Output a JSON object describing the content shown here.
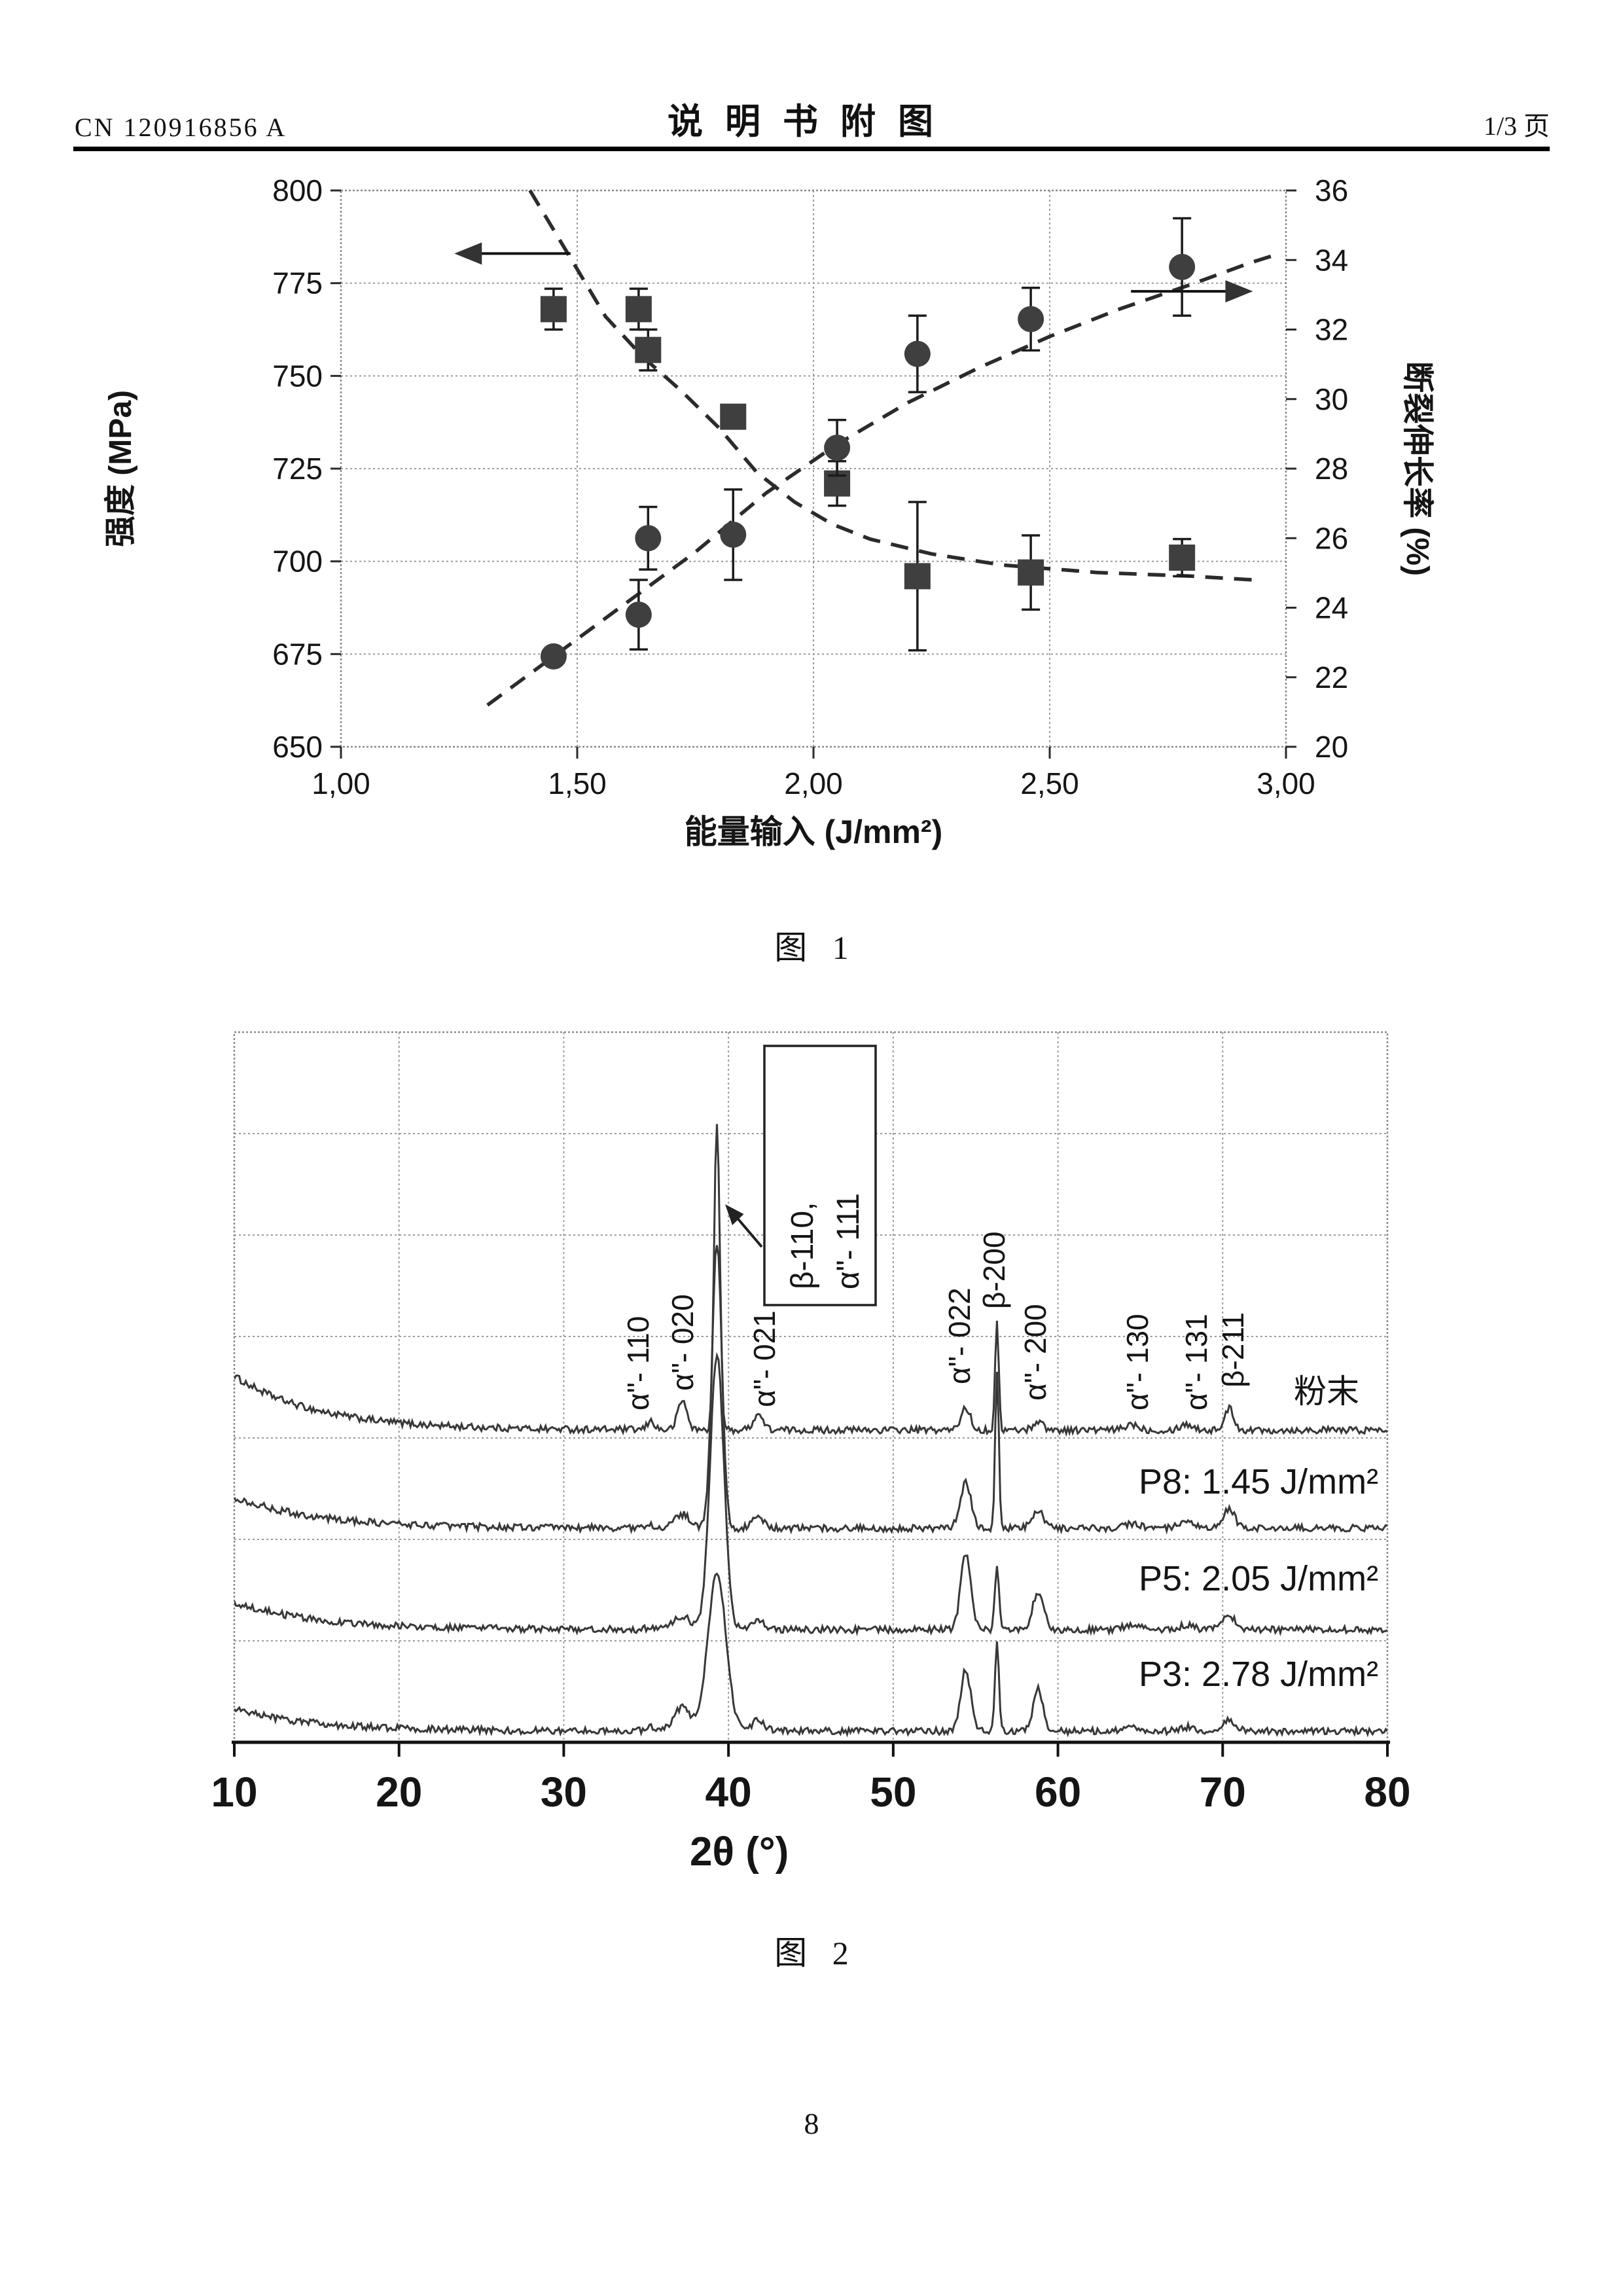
{
  "page": {
    "header_left": "CN 120916856 A",
    "header_center": "说明书附图",
    "header_right": "1/3 页",
    "fig1_caption": "图 1",
    "fig2_caption": "图 2",
    "footer_page_number": "8"
  },
  "chart_data": [
    {
      "id": "fig1",
      "type": "scatter",
      "title": "图 1",
      "xlabel": "能量输入 (J/mm²)",
      "ylabel_left": "强度 (MPa)",
      "ylabel_right": "断裂伸长率 (%)",
      "xlim": [
        1.0,
        3.0
      ],
      "ylim_left": [
        650,
        800
      ],
      "ylim_right": [
        20,
        36
      ],
      "x_tick_values": [
        1.0,
        1.5,
        2.0,
        2.5,
        3.0
      ],
      "x_tick_labels": [
        "1,00",
        "1,50",
        "2,00",
        "2,50",
        "3,00"
      ],
      "y_ticks_left": [
        800,
        775,
        750,
        725,
        700,
        675,
        650
      ],
      "y_ticks_right": [
        36,
        34,
        32,
        30,
        28,
        26,
        24,
        22,
        20
      ],
      "grid": true,
      "legend_position": "none",
      "series": [
        {
          "name": "强度",
          "marker": "square",
          "axis": "left",
          "points_xye": [
            [
              1.45,
              768,
              5.5
            ],
            [
              1.63,
              768,
              5.5
            ],
            [
              1.65,
              757,
              5.5
            ],
            [
              1.83,
              739,
              0
            ],
            [
              2.05,
              721,
              6
            ],
            [
              2.22,
              696,
              20
            ],
            [
              2.46,
              697,
              10
            ],
            [
              2.78,
              701,
              5
            ]
          ]
        },
        {
          "name": "断裂伸长率",
          "marker": "circle",
          "axis": "right",
          "points_xye": [
            [
              1.45,
              22.6,
              0
            ],
            [
              1.63,
              23.8,
              1.0
            ],
            [
              1.65,
              26.0,
              0.9
            ],
            [
              1.83,
              26.1,
              1.3
            ],
            [
              2.05,
              28.6,
              0.8
            ],
            [
              2.22,
              31.3,
              1.1
            ],
            [
              2.46,
              32.3,
              0.9
            ],
            [
              2.78,
              33.8,
              1.4
            ]
          ]
        }
      ],
      "trend_left": [
        [
          1.4,
          800
        ],
        [
          1.48,
          783
        ],
        [
          1.56,
          766
        ],
        [
          1.64,
          755
        ],
        [
          1.72,
          746
        ],
        [
          1.8,
          736
        ],
        [
          1.88,
          724
        ],
        [
          1.96,
          716
        ],
        [
          2.04,
          710
        ],
        [
          2.12,
          706
        ],
        [
          2.25,
          702
        ],
        [
          2.4,
          699
        ],
        [
          2.6,
          697
        ],
        [
          2.8,
          696
        ],
        [
          2.93,
          695
        ]
      ],
      "trend_right": [
        [
          1.31,
          21.2
        ],
        [
          1.45,
          22.6
        ],
        [
          1.6,
          24.1
        ],
        [
          1.75,
          25.6
        ],
        [
          1.9,
          27.3
        ],
        [
          2.05,
          28.7
        ],
        [
          2.2,
          29.9
        ],
        [
          2.35,
          30.9
        ],
        [
          2.5,
          31.8
        ],
        [
          2.65,
          32.6
        ],
        [
          2.8,
          33.3
        ],
        [
          2.92,
          33.9
        ],
        [
          2.99,
          34.2
        ]
      ],
      "arrow_to_left_axis": {
        "y_value_mpa": 783,
        "x_from": 1.486,
        "x_tip": 1.24
      },
      "arrow_to_right_axis": {
        "y_value_pct": 33.1,
        "x_from": 2.672,
        "x_tip": 2.93
      }
    },
    {
      "id": "fig2",
      "type": "line",
      "title": "图 2",
      "xlabel": "2θ (°)",
      "ylabel": "",
      "xlim": [
        10,
        80
      ],
      "x_ticks": [
        10,
        20,
        30,
        40,
        50,
        60,
        70,
        80
      ],
      "grid": true,
      "curves": [
        {
          "label": "粉末",
          "background_amp_u": 55,
          "peaks_pos_h_sigma": [
            [
              35.3,
              9,
              0.22
            ],
            [
              37.2,
              30,
              0.28
            ],
            [
              39.3,
              315,
              0.17
            ],
            [
              41.8,
              16,
              0.3
            ],
            [
              54.4,
              23,
              0.28
            ],
            [
              56.3,
              108,
              0.11
            ],
            [
              58.8,
              9,
              0.3
            ],
            [
              64.5,
              6,
              0.4
            ],
            [
              67.8,
              6,
              0.4
            ],
            [
              70.4,
              22,
              0.28
            ]
          ]
        },
        {
          "label": "P8: 1.45 J/mm²",
          "background_amp_u": 32,
          "peaks_pos_h_sigma": [
            [
              35.3,
              3,
              0.3
            ],
            [
              37.2,
              14,
              0.45
            ],
            [
              39.3,
              290,
              0.3
            ],
            [
              41.8,
              11,
              0.35
            ],
            [
              54.4,
              46,
              0.33
            ],
            [
              56.3,
              158,
              0.11
            ],
            [
              58.8,
              17,
              0.35
            ],
            [
              64.5,
              5,
              0.45
            ],
            [
              67.8,
              5,
              0.45
            ],
            [
              70.4,
              20,
              0.33
            ]
          ]
        },
        {
          "label": "P5: 2.05 J/mm²",
          "background_amp_u": 28,
          "peaks_pos_h_sigma": [
            [
              35.3,
              2,
              0.3
            ],
            [
              37.2,
              14,
              0.5
            ],
            [
              39.3,
              280,
              0.42
            ],
            [
              41.8,
              9,
              0.4
            ],
            [
              54.4,
              78,
              0.3
            ],
            [
              56.3,
              62,
              0.13
            ],
            [
              58.8,
              38,
              0.33
            ],
            [
              64.5,
              5,
              0.5
            ],
            [
              67.8,
              4,
              0.5
            ],
            [
              70.4,
              14,
              0.4
            ]
          ]
        },
        {
          "label": "P3: 2.78 J/mm²",
          "background_amp_u": 22,
          "peaks_pos_h_sigma": [
            [
              35.3,
              4,
              0.3
            ],
            [
              37.2,
              24,
              0.5
            ],
            [
              39.3,
              160,
              0.55
            ],
            [
              41.8,
              11,
              0.4
            ],
            [
              54.4,
              63,
              0.3
            ],
            [
              56.3,
              94,
              0.12
            ],
            [
              58.8,
              43,
              0.3
            ],
            [
              64.5,
              4,
              0.5
            ],
            [
              67.8,
              4,
              0.5
            ],
            [
              70.4,
              11,
              0.4
            ]
          ]
        }
      ],
      "peak_labels": [
        {
          "text": "α\"- 110",
          "two_theta": 35.3
        },
        {
          "text": "α\"- 020",
          "two_theta": 37.2
        },
        {
          "text": "α\"- 021",
          "two_theta": 41.8
        },
        {
          "text": "α\"- 022",
          "two_theta": 54.4
        },
        {
          "text": "β-200",
          "two_theta": 56.3
        },
        {
          "text": "α\"- 200",
          "two_theta": 58.8
        },
        {
          "text": "α\"- 130",
          "two_theta": 64.5
        },
        {
          "text": "α\"- 131",
          "two_theta": 67.8
        },
        {
          "text": "β-211",
          "two_theta": 70.4
        }
      ],
      "annotation_box": {
        "lines": [
          "β-110,",
          "α\"- 111"
        ],
        "points_to_two_theta": 39.3
      }
    }
  ]
}
